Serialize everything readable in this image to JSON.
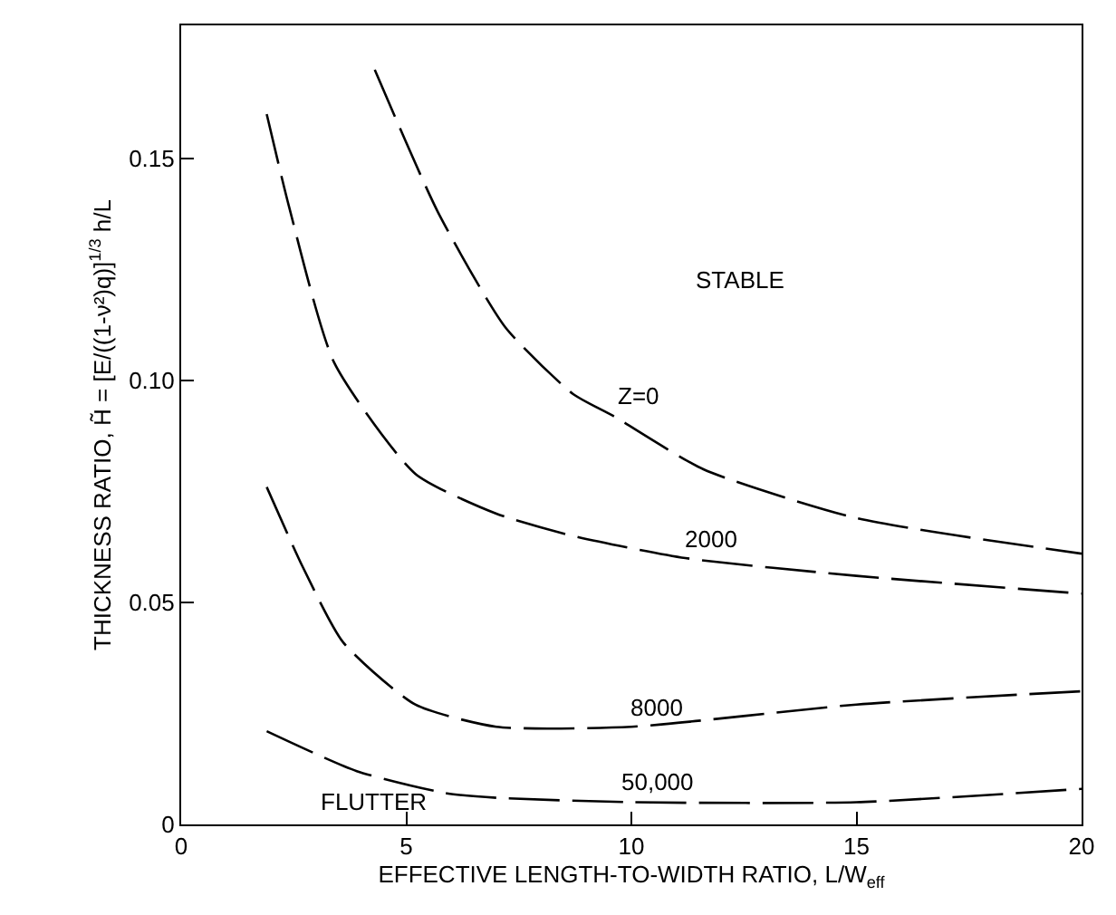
{
  "chart_data": {
    "type": "line",
    "xlabel": "EFFECTIVE LENGTH-TO-WIDTH RATIO, L/W$_{eff}$",
    "ylabel": "THICKNESS RATIO, H̃ = [E/((1-ν²)q)]$^{1/3}$ h/L",
    "xlim": [
      0,
      20
    ],
    "xticks": [
      0,
      5,
      10,
      15,
      20
    ],
    "ylim": [
      0,
      0.18
    ],
    "yticks": [
      0,
      0.05,
      {
        "value": 0.1,
        "label": "0.10"
      },
      0.15
    ],
    "legend": false,
    "marker": "none",
    "line_style": "dashed",
    "series": [
      {
        "name": "Z=0",
        "color": "#000000",
        "x": [
          4.3,
          5.7,
          7.2,
          8.7,
          9.6,
          11.6,
          15.0,
          20.0
        ],
        "values": [
          0.17,
          0.138,
          0.112,
          0.097,
          0.092,
          0.08,
          0.069,
          0.061
        ]
      },
      {
        "name": "2000",
        "color": "#000000",
        "x": [
          1.9,
          2.4,
          3.4,
          5.2,
          7.0,
          8.7,
          11.2,
          15.0,
          20.0
        ],
        "values": [
          0.16,
          0.139,
          0.104,
          0.079,
          0.07,
          0.065,
          0.06,
          0.056,
          0.052
        ]
      },
      {
        "name": "8000",
        "color": "#000000",
        "x": [
          1.9,
          2.7,
          3.6,
          5.2,
          7.0,
          10.0,
          15.0,
          20.0
        ],
        "values": [
          0.076,
          0.058,
          0.041,
          0.027,
          0.022,
          0.022,
          0.027,
          0.03
        ]
      },
      {
        "name": "50,000",
        "color": "#000000",
        "x": [
          1.9,
          3.9,
          5.9,
          7.0,
          10.0,
          15.0,
          20.0
        ],
        "values": [
          0.021,
          0.012,
          0.007,
          0.006,
          0.005,
          0.005,
          0.008
        ]
      }
    ],
    "annotations": [
      "STABLE",
      "FLUTTER"
    ]
  }
}
